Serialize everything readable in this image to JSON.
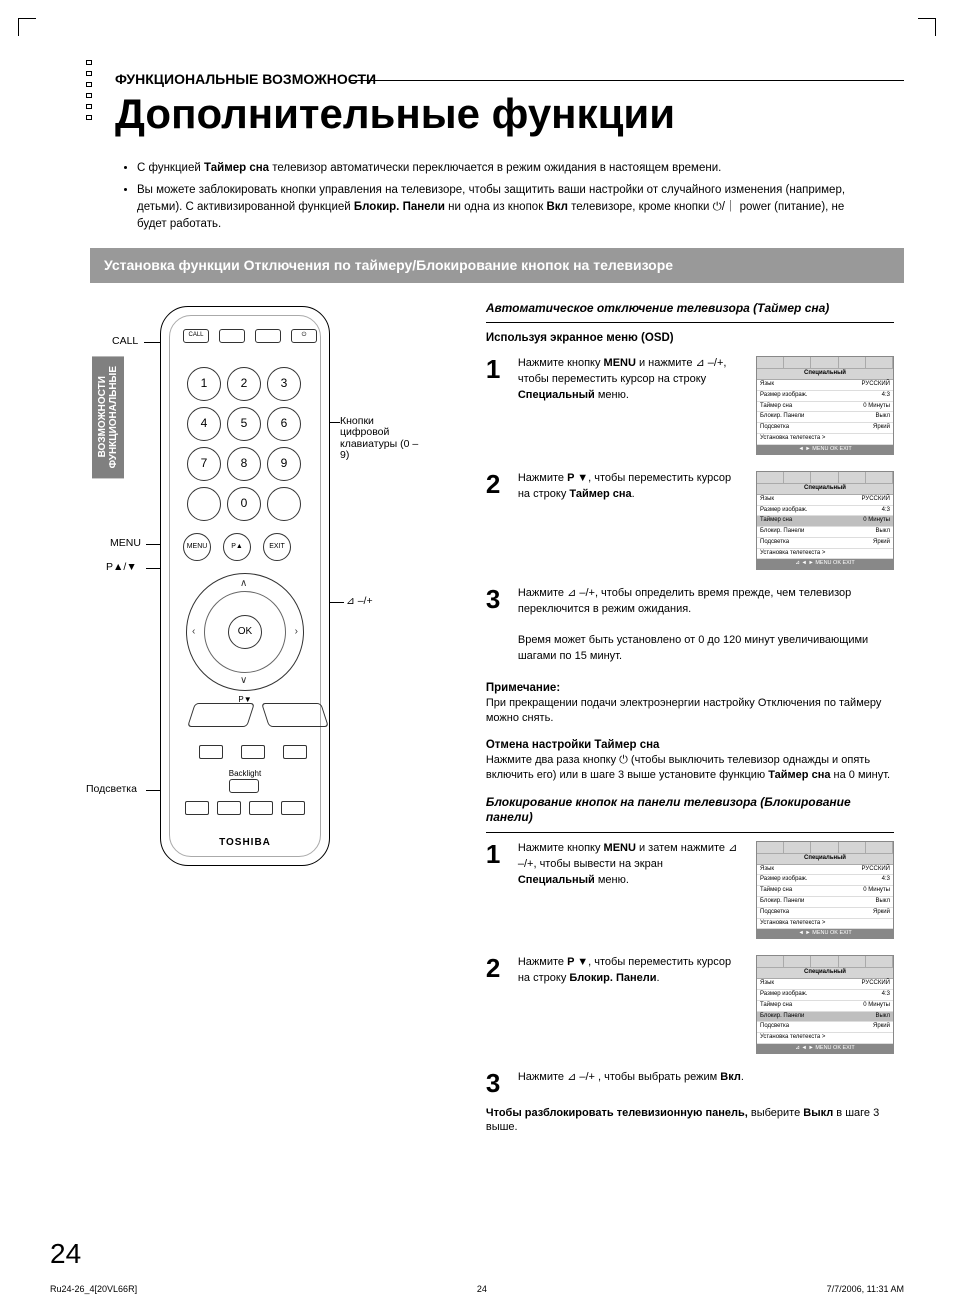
{
  "header": {
    "section": "ФУНКЦИОНАЛЬНЫЕ ВОЗМОЖНОСТИ",
    "title": "Дополнительные функции"
  },
  "intro": {
    "b1_pre": "С функцией ",
    "b1_bold": "Таймер сна",
    "b1_post": " телевизор автоматически переключается в режим ожидания в настоящем времени.",
    "b2_pre": "Вы можете заблокировать кнопки управления на телевизоре, чтобы защитить ваши настройки от случайного изменения (например, детьми). С активизированной функцией ",
    "b2_bold": "Блокир. Панели",
    "b2_mid": " ни одна из кнопок ",
    "b2_bold2": "Вкл",
    "b2_post": " телевизоре, кроме кнопки ⏻/｜ power (питание), не будет работать."
  },
  "band": "Установка функции Отключения по таймеру/Блокирование кнопок на телевизоре",
  "side_tab": {
    "l1": "ФУНКЦИОНАЛЬНЫЕ",
    "l2": "ВОЗМОЖНОСТИ"
  },
  "remote": {
    "brand": "TOSHIBA",
    "lbl_call": "CALL",
    "lbl_keypad": "Кнопки цифровой клавиатуры (0 – 9)",
    "lbl_menu": "MENU",
    "lbl_pav": "P▲/▼",
    "lbl_vol": "⊿ –/+",
    "lbl_backlight": "Подсветка",
    "lbl_backlight_btn": "Backlight",
    "ok": "OK",
    "menu": "MENU",
    "exit": "EXIT",
    "k1": "1",
    "k2": "2",
    "k3": "3",
    "k4": "4",
    "k5": "5",
    "k6": "6",
    "k7": "7",
    "k8": "8",
    "k9": "9",
    "k0": "0"
  },
  "right": {
    "h1": "Автоматическое отключение телевизора (Таймер сна)",
    "osd_label": "Используя экранное меню (OSD)",
    "s1_pre": "Нажмите кнопку ",
    "s1_b1": "MENU",
    "s1_mid": " и нажмите ⊿ –/+, чтобы переместить курсор на строку ",
    "s1_b2": "Специальный",
    "s1_post": " меню.",
    "s2_pre": "Нажмите ",
    "s2_b1": "P ▼",
    "s2_mid": ", чтобы переместить курсор на строку ",
    "s2_b2": "Таймер сна",
    "s2_post": ".",
    "s3": "Нажмите ⊿ –/+, чтобы определить время прежде, чем телевизор переключится в режим ожидания.",
    "s3b": "Время может быть установлено от 0 до 120 минут увеличивающими шагами по 15 минут.",
    "note_h": "Примечание:",
    "note_b": "При прекращении подачи электроэнергии настройку Отключения по таймеру можно снять.",
    "cancel_h": "Отмена настройки Таймер сна",
    "cancel_pre": "Нажмите два раза кнопку ⏻ (чтобы выключить телевизор однажды и опять включить его) или в шаге 3 выше установите функцию ",
    "cancel_b": "Таймер сна",
    "cancel_post": " на 0 минут.",
    "h2": "Блокирование кнопок на панели телевизора (Блокирование панели)",
    "p1_pre": "Нажмите кнопку ",
    "p1_b1": "MENU",
    "p1_mid": " и затем нажмите ⊿ –/+, чтобы вывести на экран ",
    "p1_b2": "Специальный",
    "p1_post": " меню.",
    "p2_pre": "Нажмите ",
    "p2_b1": "P ▼",
    "p2_mid": ", чтобы переместить курсор на строку ",
    "p2_b2": "Блокир. Панели",
    "p2_post": ".",
    "p3_pre": "Нажмите ⊿ –/+ , чтобы выбрать режим ",
    "p3_b": "Вкл",
    "p3_post": ".",
    "unlock_pre": "Чтобы разблокировать телевизионную панель, ",
    "unlock_mid": "выберите ",
    "unlock_b": "Выкл",
    "unlock_post": " в шаге 3 выше."
  },
  "osd": {
    "title": "Специальный",
    "rows": [
      {
        "k": "Язык",
        "v": "РУССКИЙ"
      },
      {
        "k": "Размер изображ.",
        "v": "4:3"
      },
      {
        "k": "Таймер сна",
        "v": "0 Минуты"
      },
      {
        "k": "Блокир. Панели",
        "v": "Выкл"
      },
      {
        "k": "Подсветка",
        "v": "Яркий"
      },
      {
        "k": "Установка телетекста >",
        "v": ""
      }
    ],
    "foot1": "◄ ► MENU OK EXIT",
    "foot2": "⊿ ◄ ► MENU OK EXIT"
  },
  "page_num": "24",
  "footer": {
    "l": "Ru24-26_4[20VL66R]",
    "c": "24",
    "r": "7/7/2006, 11:31 AM"
  }
}
